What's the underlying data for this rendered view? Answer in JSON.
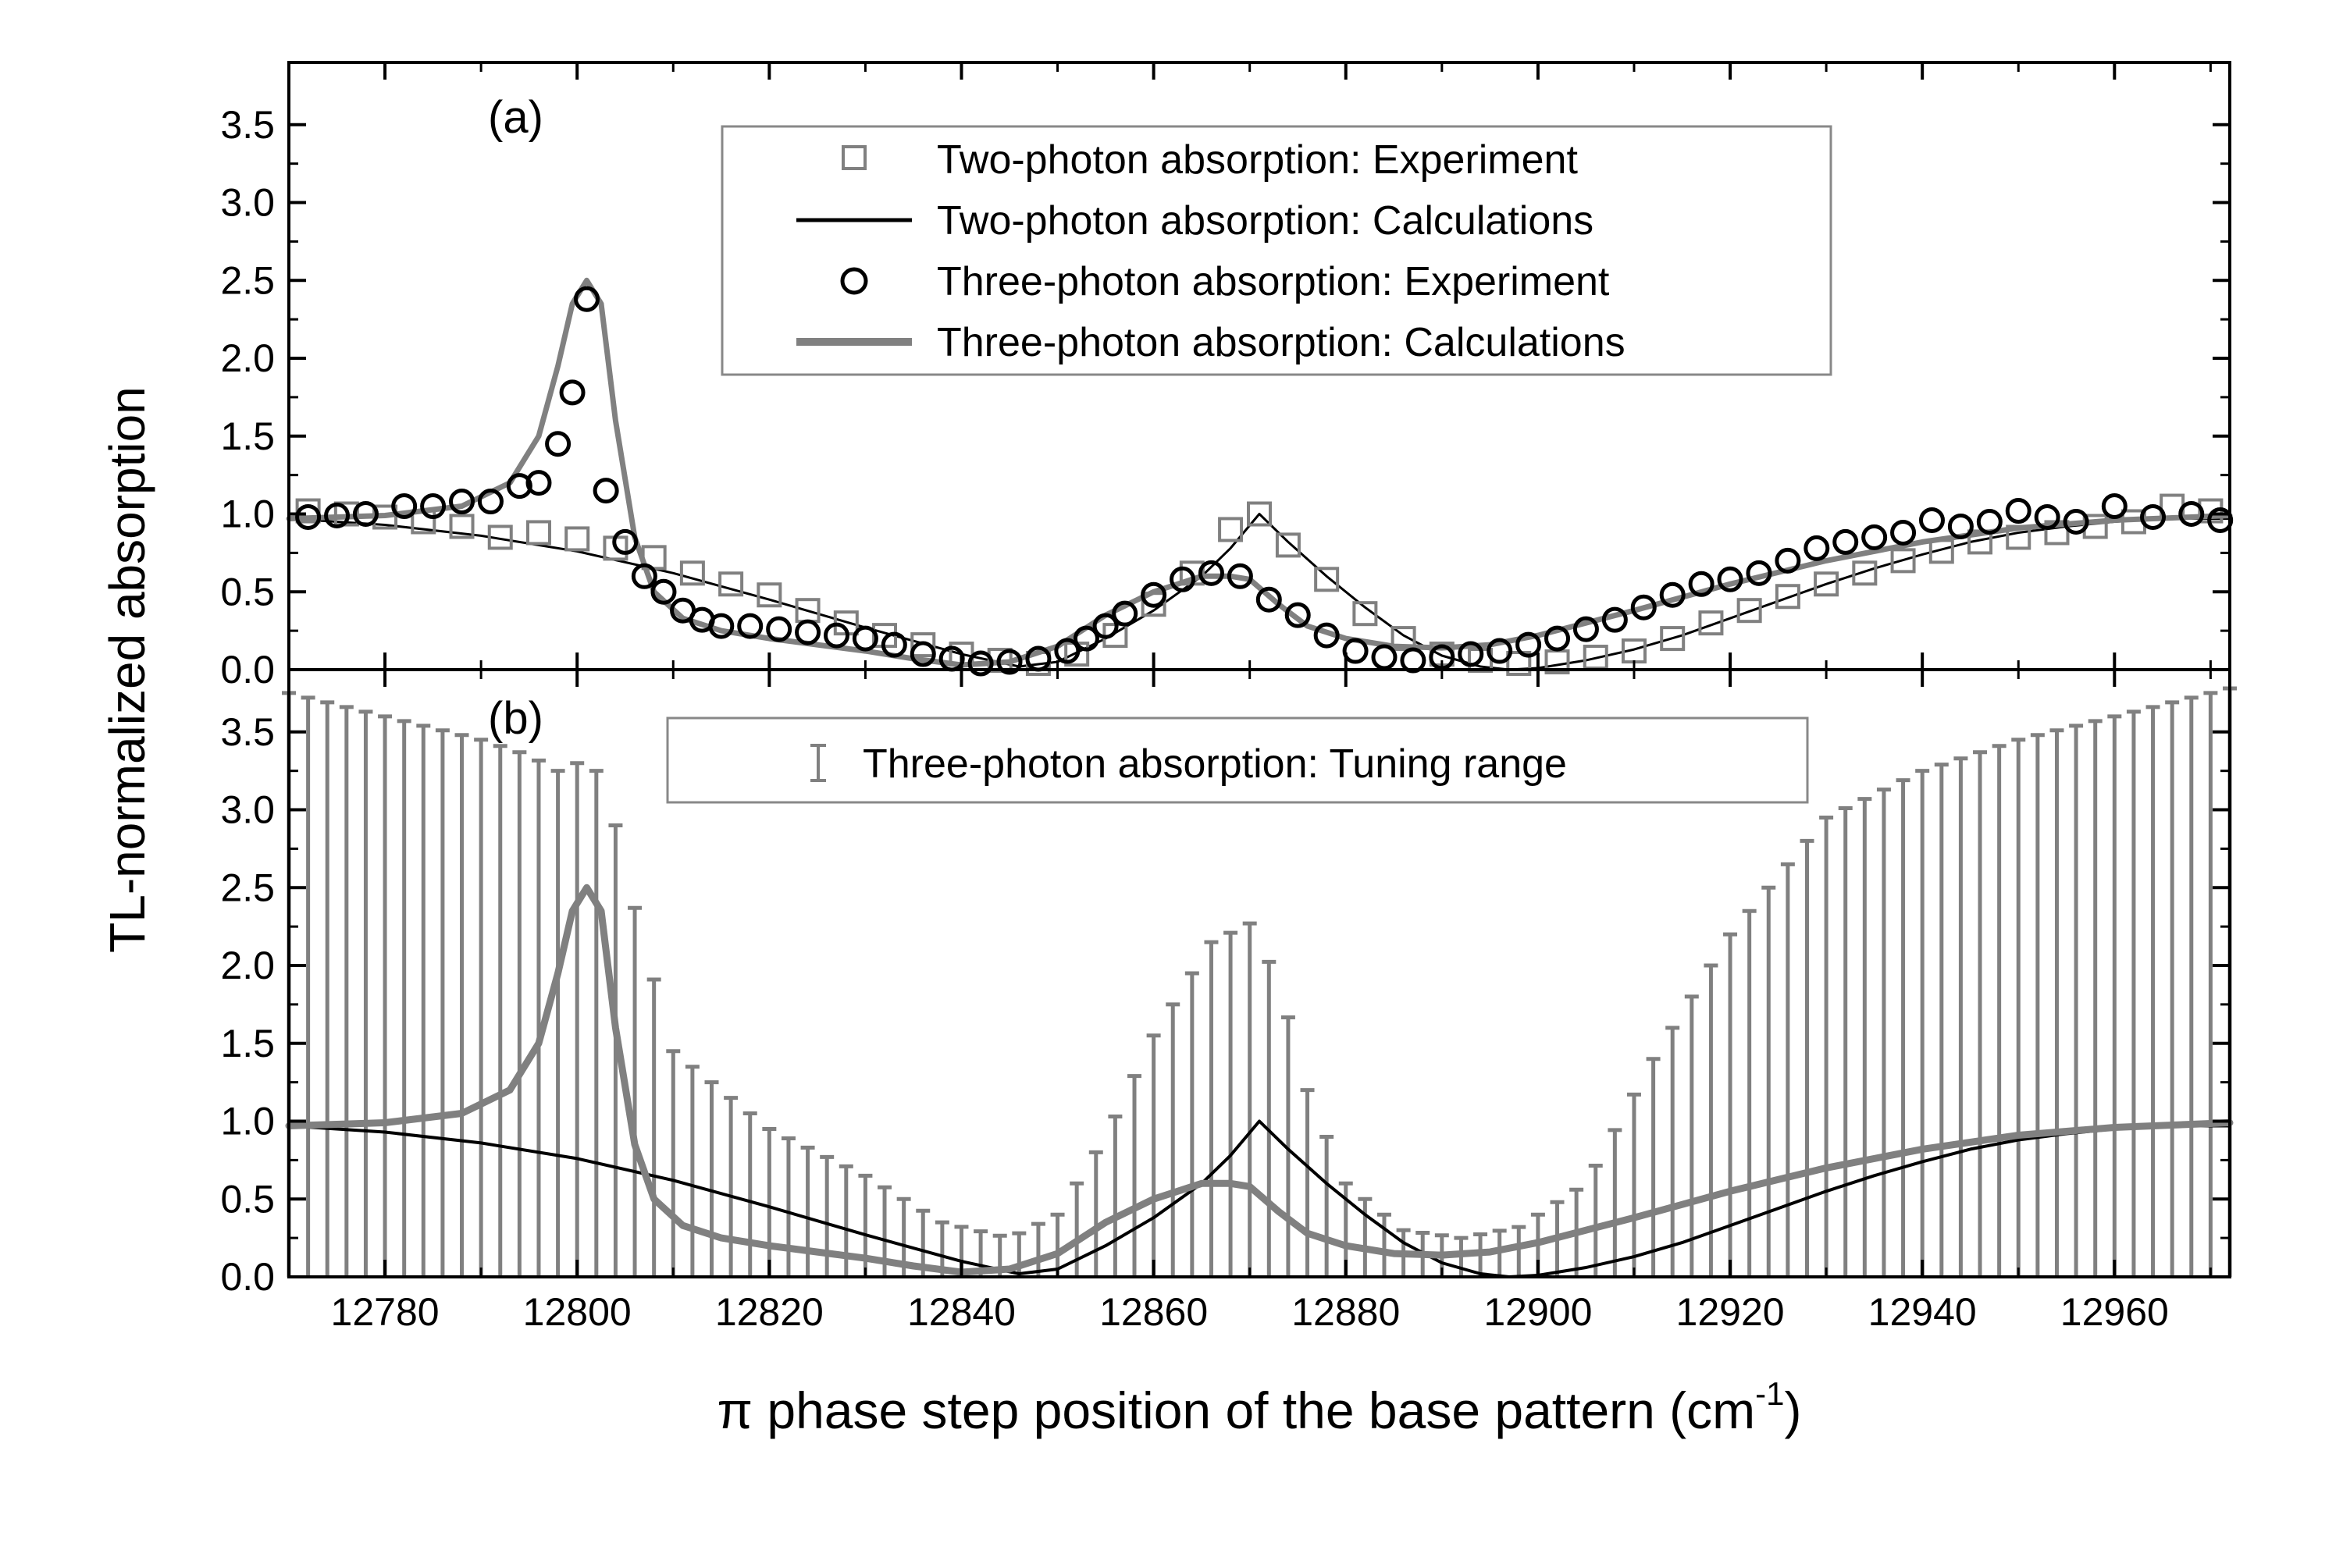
{
  "figure": {
    "ylabel": "TL-normalized absorption",
    "xlabel_main": "π phase step position of the base pattern (cm",
    "xlabel_sup": "-1",
    "xlabel_close": ")"
  },
  "colors": {
    "black": "#000000",
    "gray": "#808080",
    "light_gray": "#888888"
  },
  "chart_data": [
    {
      "id": "a",
      "panel_label": "(a)",
      "type": "line",
      "xlim": [
        12770,
        12972
      ],
      "ylim": [
        0,
        3.9
      ],
      "x_ticks": [
        12780,
        12800,
        12820,
        12840,
        12860,
        12880,
        12900,
        12920,
        12940,
        12960
      ],
      "y_ticks": [
        "0.0",
        "0.5",
        "1.0",
        "1.5",
        "2.0",
        "2.5",
        "3.0",
        "3.5"
      ],
      "legend": [
        {
          "label": "Two-photon absorption: Experiment",
          "marker": "square",
          "color": "#808080"
        },
        {
          "label": "Two-photon absorption: Calculations",
          "marker": "line",
          "color": "#000000"
        },
        {
          "label": "Three-photon absorption: Experiment",
          "marker": "circle",
          "color": "#000000"
        },
        {
          "label": "Three-photon absorption: Calculations",
          "marker": "thickline",
          "color": "#808080"
        }
      ],
      "series": [
        {
          "name": "Two-photon absorption: Calculations",
          "kind": "line",
          "color": "#000000",
          "width": 3,
          "x": [
            12770,
            12780,
            12790,
            12800,
            12810,
            12820,
            12830,
            12840,
            12846,
            12850,
            12855,
            12860,
            12865,
            12868,
            12871,
            12874,
            12878,
            12882,
            12886,
            12890,
            12894,
            12897,
            12900,
            12905,
            12910,
            12915,
            12920,
            12925,
            12930,
            12935,
            12940,
            12945,
            12950,
            12955,
            12960,
            12965,
            12972
          ],
          "y": [
            0.97,
            0.93,
            0.86,
            0.76,
            0.62,
            0.45,
            0.27,
            0.1,
            0.02,
            0.05,
            0.2,
            0.38,
            0.6,
            0.78,
            1.0,
            0.82,
            0.6,
            0.4,
            0.22,
            0.09,
            0.02,
            0.0,
            0.01,
            0.06,
            0.13,
            0.22,
            0.33,
            0.44,
            0.55,
            0.65,
            0.74,
            0.82,
            0.88,
            0.92,
            0.95,
            0.97,
            0.97
          ]
        },
        {
          "name": "Three-photon absorption: Calculations",
          "kind": "line",
          "color": "#808080",
          "width": 7,
          "x": [
            12770,
            12780,
            12788,
            12793,
            12796,
            12798,
            12799.5,
            12801,
            12802.5,
            12804,
            12806,
            12808,
            12811,
            12815,
            12820,
            12825,
            12830,
            12835,
            12840,
            12845,
            12850,
            12855,
            12860,
            12865,
            12868,
            12870,
            12873,
            12876,
            12880,
            12885,
            12890,
            12895,
            12900,
            12910,
            12920,
            12930,
            12940,
            12950,
            12960,
            12972
          ],
          "y": [
            0.97,
            0.99,
            1.05,
            1.2,
            1.5,
            1.95,
            2.35,
            2.5,
            2.35,
            1.6,
            0.85,
            0.5,
            0.33,
            0.25,
            0.2,
            0.16,
            0.12,
            0.07,
            0.03,
            0.05,
            0.15,
            0.35,
            0.5,
            0.6,
            0.6,
            0.58,
            0.42,
            0.28,
            0.2,
            0.15,
            0.14,
            0.16,
            0.22,
            0.38,
            0.55,
            0.7,
            0.82,
            0.91,
            0.96,
            0.99
          ]
        },
        {
          "name": "Two-photon absorption: Experiment",
          "kind": "square",
          "color": "#808080",
          "x": [
            12772,
            12776,
            12780,
            12784,
            12788,
            12792,
            12796,
            12800,
            12804,
            12808,
            12812,
            12816,
            12820,
            12824,
            12828,
            12832,
            12836,
            12840,
            12844,
            12848,
            12852,
            12856,
            12860,
            12864,
            12868,
            12871,
            12874,
            12878,
            12882,
            12886,
            12890,
            12894,
            12898,
            12902,
            12906,
            12910,
            12914,
            12918,
            12922,
            12926,
            12930,
            12934,
            12938,
            12942,
            12946,
            12950,
            12954,
            12958,
            12962,
            12966,
            12970
          ],
          "y": [
            1.02,
            1.0,
            0.98,
            0.95,
            0.92,
            0.85,
            0.88,
            0.84,
            0.78,
            0.72,
            0.62,
            0.55,
            0.48,
            0.38,
            0.3,
            0.22,
            0.16,
            0.1,
            0.06,
            0.04,
            0.1,
            0.22,
            0.42,
            0.62,
            0.9,
            1.0,
            0.8,
            0.58,
            0.36,
            0.2,
            0.1,
            0.06,
            0.04,
            0.05,
            0.08,
            0.12,
            0.2,
            0.3,
            0.38,
            0.47,
            0.55,
            0.62,
            0.7,
            0.76,
            0.82,
            0.85,
            0.88,
            0.92,
            0.95,
            1.05,
            1.02
          ]
        },
        {
          "name": "Three-photon absorption: Experiment",
          "kind": "circle",
          "color": "#000000",
          "x": [
            12772,
            12775,
            12778,
            12782,
            12785,
            12788,
            12791,
            12794,
            12796,
            12798,
            12799.5,
            12801,
            12803,
            12805,
            12807,
            12809,
            12811,
            12813,
            12815,
            12818,
            12821,
            12824,
            12827,
            12830,
            12833,
            12836,
            12839,
            12842,
            12845,
            12848,
            12851,
            12853,
            12855,
            12857,
            12860,
            12863,
            12866,
            12869,
            12872,
            12875,
            12878,
            12881,
            12884,
            12887,
            12890,
            12893,
            12896,
            12899,
            12902,
            12905,
            12908,
            12911,
            12914,
            12917,
            12920,
            12923,
            12926,
            12929,
            12932,
            12935,
            12938,
            12941,
            12944,
            12947,
            12950,
            12953,
            12956,
            12960,
            12964,
            12968,
            12971
          ],
          "y": [
            0.98,
            0.99,
            1.0,
            1.05,
            1.05,
            1.08,
            1.08,
            1.18,
            1.2,
            1.45,
            1.78,
            2.38,
            1.15,
            0.82,
            0.6,
            0.5,
            0.38,
            0.32,
            0.28,
            0.28,
            0.26,
            0.24,
            0.22,
            0.2,
            0.16,
            0.1,
            0.07,
            0.04,
            0.05,
            0.07,
            0.12,
            0.2,
            0.28,
            0.36,
            0.48,
            0.58,
            0.62,
            0.6,
            0.45,
            0.35,
            0.22,
            0.12,
            0.08,
            0.06,
            0.08,
            0.1,
            0.12,
            0.16,
            0.2,
            0.26,
            0.32,
            0.4,
            0.48,
            0.55,
            0.58,
            0.62,
            0.7,
            0.78,
            0.82,
            0.85,
            0.88,
            0.96,
            0.92,
            0.95,
            1.02,
            0.98,
            0.95,
            1.05,
            0.98,
            1.0,
            0.96
          ]
        }
      ]
    },
    {
      "id": "b",
      "panel_label": "(b)",
      "type": "line",
      "xlim": [
        12770,
        12972
      ],
      "ylim": [
        0,
        3.9
      ],
      "x_ticks": [
        12780,
        12800,
        12820,
        12840,
        12860,
        12880,
        12900,
        12920,
        12940,
        12960
      ],
      "x_tick_labels": [
        "12780",
        "12800",
        "12820",
        "12840",
        "12860",
        "12880",
        "12900",
        "12920",
        "12940",
        "12960"
      ],
      "y_ticks": [
        "0.0",
        "0.5",
        "1.0",
        "1.5",
        "2.0",
        "2.5",
        "3.0",
        "3.5"
      ],
      "legend": [
        {
          "label": "Three-photon absorption: Tuning range",
          "marker": "errorbar",
          "color": "#808080"
        }
      ],
      "tuning_range": {
        "name": "Three-photon absorption: Tuning range",
        "color": "#808080",
        "x_start": 12770,
        "x_end": 12972,
        "x_step": 2,
        "upper_x": [
          12770,
          12780,
          12790,
          12795,
          12798,
          12800,
          12802,
          12803,
          12805,
          12810,
          12820,
          12830,
          12838,
          12845,
          12850,
          12855,
          12860,
          12866,
          12870,
          12873,
          12876,
          12880,
          12886,
          12892,
          12898,
          12905,
          12912,
          12920,
          12930,
          12940,
          12950,
          12960,
          12972
        ],
        "upper_y": [
          3.75,
          3.6,
          3.45,
          3.35,
          3.25,
          3.3,
          3.25,
          3.2,
          2.6,
          1.45,
          0.95,
          0.65,
          0.35,
          0.25,
          0.4,
          0.9,
          1.55,
          2.15,
          2.27,
          1.9,
          1.2,
          0.6,
          0.3,
          0.25,
          0.32,
          0.6,
          1.4,
          2.2,
          2.95,
          3.25,
          3.45,
          3.6,
          3.78
        ],
        "lower_y": 0
      },
      "series": [
        {
          "name": "Two-photon absorption: Calculations",
          "kind": "line",
          "color": "#000000",
          "width": 4,
          "x": [
            12770,
            12780,
            12790,
            12800,
            12810,
            12820,
            12830,
            12840,
            12846,
            12850,
            12855,
            12860,
            12865,
            12868,
            12871,
            12874,
            12878,
            12882,
            12886,
            12890,
            12894,
            12897,
            12900,
            12905,
            12910,
            12915,
            12920,
            12925,
            12930,
            12935,
            12940,
            12945,
            12950,
            12955,
            12960,
            12965,
            12972
          ],
          "y": [
            0.97,
            0.93,
            0.86,
            0.76,
            0.62,
            0.45,
            0.27,
            0.1,
            0.02,
            0.05,
            0.2,
            0.38,
            0.6,
            0.78,
            1.0,
            0.82,
            0.6,
            0.4,
            0.22,
            0.09,
            0.02,
            0.0,
            0.01,
            0.06,
            0.13,
            0.22,
            0.33,
            0.44,
            0.55,
            0.65,
            0.74,
            0.82,
            0.88,
            0.92,
            0.95,
            0.97,
            0.97
          ]
        },
        {
          "name": "Three-photon absorption: Calculations",
          "kind": "line",
          "color": "#808080",
          "width": 9,
          "x": [
            12770,
            12780,
            12788,
            12793,
            12796,
            12798,
            12799.5,
            12801,
            12802.5,
            12804,
            12806,
            12808,
            12811,
            12815,
            12820,
            12825,
            12830,
            12835,
            12840,
            12845,
            12850,
            12855,
            12860,
            12865,
            12868,
            12870,
            12873,
            12876,
            12880,
            12885,
            12890,
            12895,
            12900,
            12910,
            12920,
            12930,
            12940,
            12950,
            12960,
            12972
          ],
          "y": [
            0.97,
            0.99,
            1.05,
            1.2,
            1.5,
            1.95,
            2.35,
            2.5,
            2.35,
            1.6,
            0.85,
            0.5,
            0.33,
            0.25,
            0.2,
            0.16,
            0.12,
            0.07,
            0.03,
            0.05,
            0.15,
            0.35,
            0.5,
            0.6,
            0.6,
            0.58,
            0.42,
            0.28,
            0.2,
            0.15,
            0.14,
            0.16,
            0.22,
            0.38,
            0.55,
            0.7,
            0.82,
            0.91,
            0.96,
            0.99
          ]
        }
      ]
    }
  ]
}
